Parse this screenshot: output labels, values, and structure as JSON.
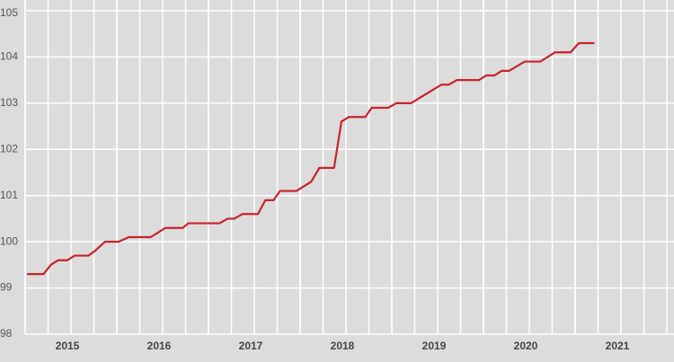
{
  "chart_data": {
    "type": "line",
    "x": [
      2015.02,
      2015.2,
      2015.28,
      2015.36,
      2015.46,
      2015.54,
      2015.69,
      2015.76,
      2015.87,
      2016.02,
      2016.13,
      2016.37,
      2016.53,
      2016.72,
      2016.78,
      2017.12,
      2017.21,
      2017.28,
      2017.37,
      2017.54,
      2017.62,
      2017.71,
      2017.78,
      2017.96,
      2018.12,
      2018.21,
      2018.37,
      2018.45,
      2018.53,
      2018.71,
      2018.78,
      2018.96,
      2019.05,
      2019.21,
      2019.54,
      2019.62,
      2019.71,
      2019.95,
      2020.03,
      2020.12,
      2020.2,
      2020.28,
      2020.45,
      2020.62,
      2020.78,
      2020.95,
      2021.04,
      2021.21
    ],
    "series": [
      {
        "color": "#c8232c",
        "values": [
          99.3,
          99.3,
          99.5,
          99.6,
          99.6,
          99.7,
          99.7,
          99.8,
          100.0,
          100.0,
          100.1,
          100.1,
          100.3,
          100.3,
          100.4,
          100.4,
          100.5,
          100.5,
          100.6,
          100.6,
          100.9,
          100.9,
          101.1,
          101.1,
          101.3,
          101.6,
          101.6,
          102.6,
          102.7,
          102.7,
          102.9,
          102.9,
          103.0,
          103.0,
          103.4,
          103.4,
          103.5,
          103.5,
          103.6,
          103.6,
          103.7,
          103.7,
          103.9,
          103.9,
          104.1,
          104.1,
          104.3,
          104.3
        ]
      }
    ],
    "xlim": [
      2015,
      2022
    ],
    "xticks": [
      2015,
      2016,
      2017,
      2018,
      2019,
      2020,
      2021
    ],
    "ylim": [
      98,
      105
    ],
    "yticks": [
      98,
      99,
      100,
      101,
      102,
      103,
      104,
      105
    ],
    "grid": true
  }
}
